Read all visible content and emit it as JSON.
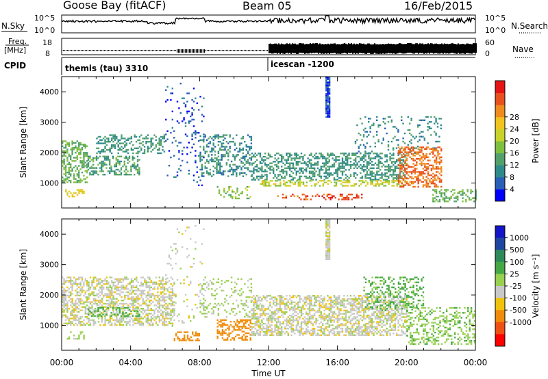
{
  "header": {
    "station": "Goose Bay (fitACF)",
    "beam": "Beam 05",
    "date": "16/Feb/2015"
  },
  "panels": {
    "nsky_label": "N.Sky",
    "nsky_ticks": [
      "10^5",
      "10^0"
    ],
    "nsearch_label": "N.Search",
    "nsearch_ticks": [
      "10^5",
      "10^0"
    ],
    "freq_label": [
      "Freq.",
      "[MHz]"
    ],
    "freq_ticks": [
      "18",
      "8"
    ],
    "nave_label": "Nave",
    "nave_ticks": [
      "60",
      "0"
    ],
    "cpid_label": "CPID",
    "cpid_segments": [
      {
        "label": "themis (tau) 3310",
        "start_hour": 0.0
      },
      {
        "label": "icescan -1200",
        "start_hour": 12.0
      }
    ]
  },
  "colors": {
    "power_scale": [
      "#0000ff",
      "#2a5fb8",
      "#2f8a8a",
      "#52a06a",
      "#7fbf40",
      "#c8d228",
      "#f0c31e",
      "#f08c1e",
      "#e8501e",
      "#e61414"
    ],
    "velocity_scale": [
      "#1414c8",
      "#1e46a0",
      "#2e8a5a",
      "#45a845",
      "#98d050",
      "#c8c8c8",
      "#f0c30a",
      "#f08c0a",
      "#f05014",
      "#ff0000"
    ]
  },
  "chart_data": [
    {
      "type": "heatmap",
      "name": "power",
      "xlabel": "Time UT",
      "ylabel": "Slant Range [km]",
      "xlim": [
        0,
        24
      ],
      "ylim": [
        180,
        4500
      ],
      "y_ticks": [
        "1000",
        "2000",
        "3000",
        "4000"
      ],
      "x_ticks": [
        "00:00",
        "04:00",
        "08:00",
        "12:00",
        "16:00",
        "20:00",
        "00:00"
      ],
      "colorbar": {
        "label": "Power [dB]",
        "ticks": [
          "4",
          "8",
          "12",
          "16",
          "20",
          "24",
          "28"
        ],
        "range": [
          0,
          30
        ]
      },
      "regions": [
        {
          "t0": 0.0,
          "t1": 1.5,
          "r0": 1000,
          "r1": 2400,
          "value": 12,
          "density": 0.55
        },
        {
          "t0": 1.5,
          "t1": 4.5,
          "r0": 1300,
          "r1": 1900,
          "value": 10,
          "density": 0.45
        },
        {
          "t0": 0.2,
          "t1": 1.3,
          "r0": 550,
          "r1": 800,
          "value": 18,
          "density": 0.5
        },
        {
          "t0": 2.0,
          "t1": 6.0,
          "r0": 2000,
          "r1": 2600,
          "value": 9,
          "density": 0.4
        },
        {
          "t0": 6.0,
          "t1": 8.2,
          "r0": 900,
          "r1": 4300,
          "value": 4,
          "density": 0.08
        },
        {
          "t0": 8.0,
          "t1": 11.0,
          "r0": 1200,
          "r1": 2600,
          "value": 8,
          "density": 0.35
        },
        {
          "t0": 9.0,
          "t1": 11.0,
          "r0": 500,
          "r1": 900,
          "value": 14,
          "density": 0.3
        },
        {
          "t0": 11.0,
          "t1": 20.0,
          "r0": 1100,
          "r1": 2000,
          "value": 9,
          "density": 0.45
        },
        {
          "t0": 11.5,
          "t1": 20.0,
          "r0": 900,
          "r1": 1100,
          "value": 16,
          "density": 0.5
        },
        {
          "t0": 12.5,
          "t1": 17.5,
          "r0": 450,
          "r1": 650,
          "value": 26,
          "density": 0.3
        },
        {
          "t0": 17.0,
          "t1": 22.0,
          "r0": 2000,
          "r1": 3200,
          "value": 8,
          "density": 0.15
        },
        {
          "t0": 19.5,
          "t1": 22.0,
          "r0": 900,
          "r1": 2200,
          "value": 24,
          "density": 0.5
        },
        {
          "t0": 21.5,
          "t1": 24.0,
          "r0": 400,
          "r1": 800,
          "value": 12,
          "density": 0.4
        },
        {
          "t0": 15.3,
          "t1": 15.5,
          "r0": 3200,
          "r1": 4500,
          "value": 4,
          "density": 0.9
        }
      ]
    },
    {
      "type": "heatmap",
      "name": "velocity",
      "xlabel": "Time UT",
      "ylabel": "Slant Range [km]",
      "xlim": [
        0,
        24
      ],
      "ylim": [
        180,
        4500
      ],
      "y_ticks": [
        "1000",
        "2000",
        "3000",
        "4000"
      ],
      "x_ticks": [
        "00:00",
        "04:00",
        "08:00",
        "12:00",
        "16:00",
        "20:00",
        "00:00"
      ],
      "colorbar": {
        "label": "Velocity [m s⁻¹]",
        "ticks": [
          "1000",
          "500",
          "100",
          "25",
          "-25",
          "-100",
          "-500",
          "-1000"
        ]
      },
      "regions": [
        {
          "t0": 0.0,
          "t1": 6.5,
          "r0": 1000,
          "r1": 2600,
          "value": 0,
          "density": 0.5
        },
        {
          "t0": 1.5,
          "t1": 4.5,
          "r0": 1300,
          "r1": 1600,
          "value": 120,
          "density": 0.4
        },
        {
          "t0": 0.2,
          "t1": 1.3,
          "r0": 550,
          "r1": 800,
          "value": 60,
          "density": 0.4
        },
        {
          "t0": 6.0,
          "t1": 8.2,
          "r0": 900,
          "r1": 4300,
          "value": 0,
          "density": 0.06
        },
        {
          "t0": 6.5,
          "t1": 8.0,
          "r0": 500,
          "r1": 800,
          "value": -200,
          "density": 0.5
        },
        {
          "t0": 9.0,
          "t1": 11.0,
          "r0": 500,
          "r1": 1200,
          "value": -200,
          "density": 0.45
        },
        {
          "t0": 8.0,
          "t1": 11.0,
          "r0": 1300,
          "r1": 2600,
          "value": 40,
          "density": 0.2
        },
        {
          "t0": 11.0,
          "t1": 20.0,
          "r0": 700,
          "r1": 2000,
          "value": 0,
          "density": 0.55
        },
        {
          "t0": 17.5,
          "t1": 21.0,
          "r0": 1500,
          "r1": 2600,
          "value": 120,
          "density": 0.3
        },
        {
          "t0": 20.0,
          "t1": 24.0,
          "r0": 400,
          "r1": 1600,
          "value": 80,
          "density": 0.35
        },
        {
          "t0": 15.3,
          "t1": 15.5,
          "r0": 3200,
          "r1": 4500,
          "value": 0,
          "density": 0.9
        }
      ]
    }
  ]
}
